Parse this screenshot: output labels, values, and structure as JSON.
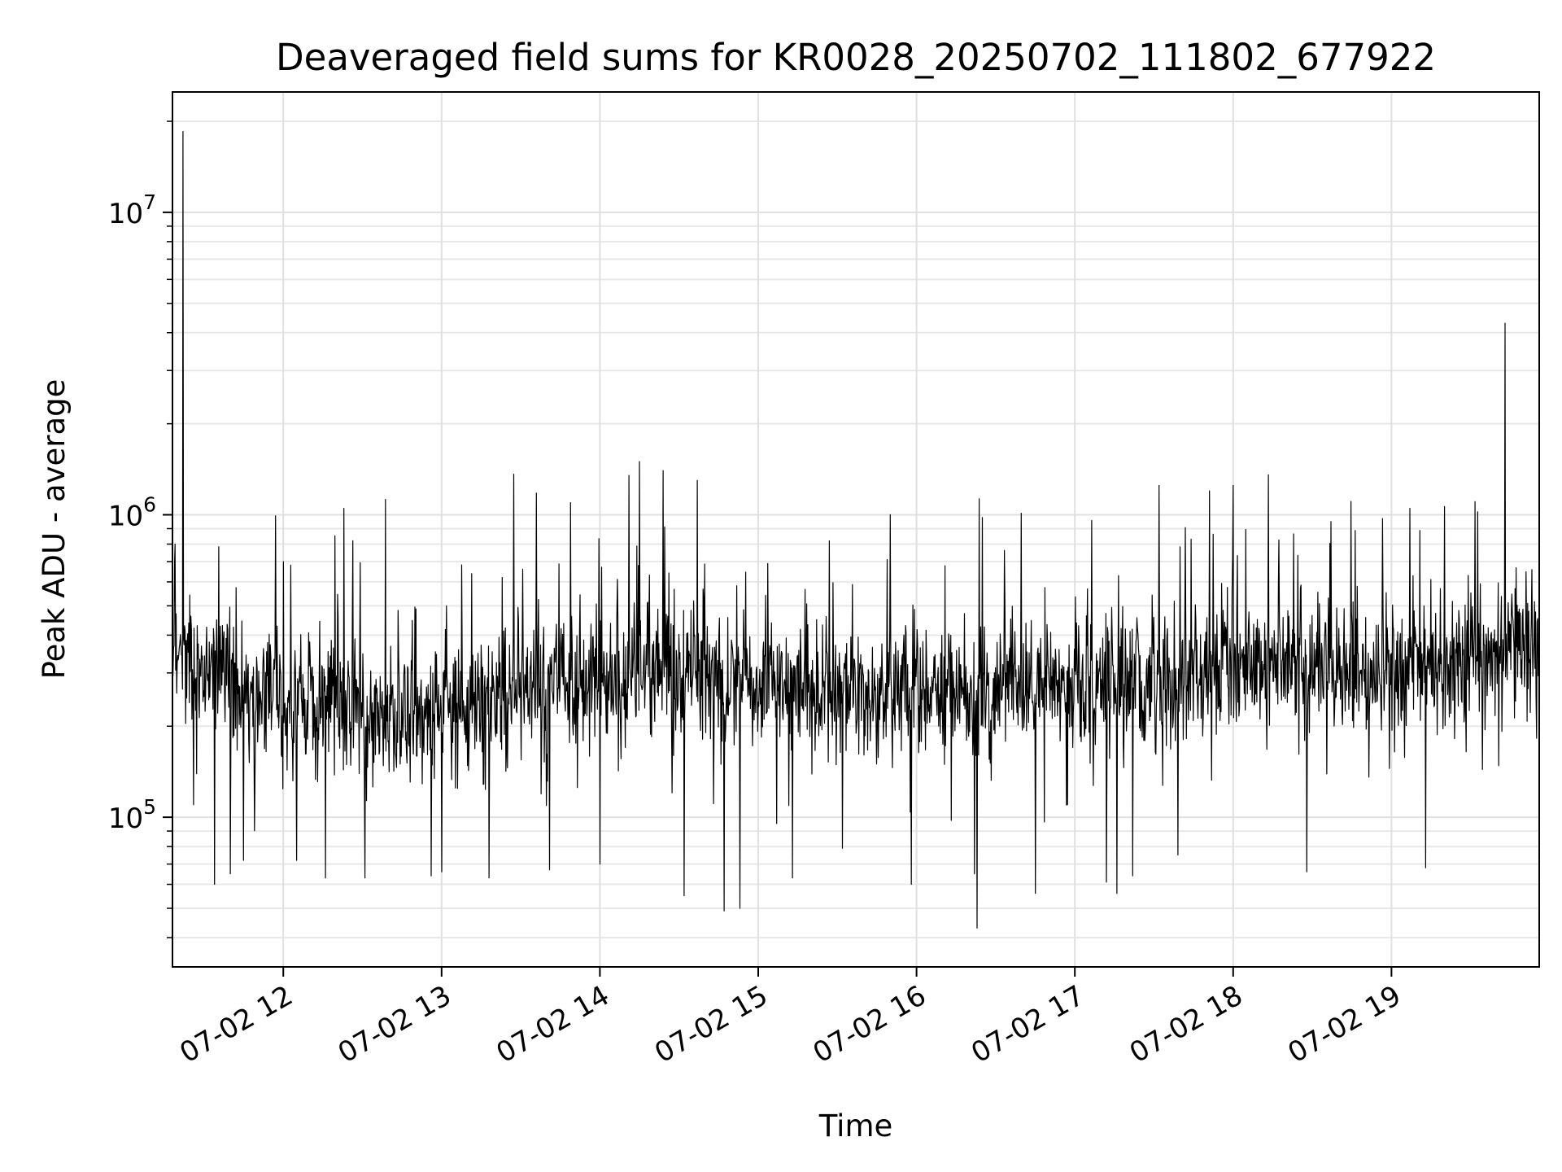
{
  "chart_data": {
    "type": "line",
    "title": "Deaveraged field sums for KR0028_20250702_111802_677922",
    "xlabel": "Time",
    "ylabel": "Peak ADU - average",
    "y_scale": "log",
    "xlim": [
      "2025-07-02 11:18",
      "2025-07-02 19:56"
    ],
    "ylim": [
      32000,
      25000000
    ],
    "grid": true,
    "line_color": "#000000",
    "x_ticks": [
      {
        "value": "2025-07-02 12:00",
        "label": "07-02 12"
      },
      {
        "value": "2025-07-02 13:00",
        "label": "07-02 13"
      },
      {
        "value": "2025-07-02 14:00",
        "label": "07-02 14"
      },
      {
        "value": "2025-07-02 15:00",
        "label": "07-02 15"
      },
      {
        "value": "2025-07-02 16:00",
        "label": "07-02 16"
      },
      {
        "value": "2025-07-02 17:00",
        "label": "07-02 17"
      },
      {
        "value": "2025-07-02 18:00",
        "label": "07-02 18"
      },
      {
        "value": "2025-07-02 19:00",
        "label": "07-02 19"
      }
    ],
    "y_ticks": [
      {
        "value": 100000,
        "base": "10",
        "exp": "5"
      },
      {
        "value": 1000000,
        "base": "10",
        "exp": "6"
      },
      {
        "value": 10000000,
        "base": "10",
        "exp": "7"
      }
    ],
    "series": [
      {
        "baseline": [
          [
            "2025-07-02 11:18",
            350000
          ],
          [
            "2025-07-02 11:30",
            300000
          ],
          [
            "2025-07-02 11:45",
            270000
          ],
          [
            "2025-07-02 12:00",
            250000
          ],
          [
            "2025-07-02 12:15",
            230000
          ],
          [
            "2025-07-02 12:30",
            215000
          ],
          [
            "2025-07-02 12:45",
            210000
          ],
          [
            "2025-07-02 13:00",
            220000
          ],
          [
            "2025-07-02 13:15",
            240000
          ],
          [
            "2025-07-02 13:30",
            260000
          ],
          [
            "2025-07-02 13:45",
            280000
          ],
          [
            "2025-07-02 14:00",
            290000
          ],
          [
            "2025-07-02 14:15",
            300000
          ],
          [
            "2025-07-02 14:30",
            300000
          ],
          [
            "2025-07-02 14:45",
            285000
          ],
          [
            "2025-07-02 15:00",
            270000
          ],
          [
            "2025-07-02 15:15",
            265000
          ],
          [
            "2025-07-02 15:30",
            265000
          ],
          [
            "2025-07-02 15:45",
            265000
          ],
          [
            "2025-07-02 16:00",
            265000
          ],
          [
            "2025-07-02 16:15",
            265000
          ],
          [
            "2025-07-02 16:30",
            270000
          ],
          [
            "2025-07-02 16:45",
            270000
          ],
          [
            "2025-07-02 17:00",
            275000
          ],
          [
            "2025-07-02 17:15",
            280000
          ],
          [
            "2025-07-02 17:30",
            290000
          ],
          [
            "2025-07-02 17:45",
            300000
          ],
          [
            "2025-07-02 18:00",
            305000
          ],
          [
            "2025-07-02 18:15",
            305000
          ],
          [
            "2025-07-02 18:30",
            300000
          ],
          [
            "2025-07-02 18:45",
            300000
          ],
          [
            "2025-07-02 19:00",
            305000
          ],
          [
            "2025-07-02 19:15",
            320000
          ],
          [
            "2025-07-02 19:30",
            350000
          ],
          [
            "2025-07-02 19:45",
            380000
          ],
          [
            "2025-07-02 19:56",
            400000
          ]
        ],
        "peaks": [
          [
            "2025-07-02 11:22",
            18500000
          ],
          [
            "2025-07-02 11:19",
            800000
          ],
          [
            "2025-07-02 12:00",
            700000
          ],
          [
            "2025-07-02 12:23",
            1050000
          ],
          [
            "2025-07-02 13:41",
            1350000
          ],
          [
            "2025-07-02 13:36",
            1180000
          ],
          [
            "2025-07-02 14:15",
            1500000
          ],
          [
            "2025-07-02 14:11",
            1350000
          ],
          [
            "2025-07-02 14:24",
            1400000
          ],
          [
            "2025-07-02 14:37",
            1300000
          ],
          [
            "2025-07-02 15:27",
            820000
          ],
          [
            "2025-07-02 16:25",
            980000
          ],
          [
            "2025-07-02 17:32",
            1250000
          ],
          [
            "2025-07-02 17:51",
            1200000
          ],
          [
            "2025-07-02 18:00",
            1250000
          ],
          [
            "2025-07-02 18:37",
            950000
          ],
          [
            "2025-07-02 19:07",
            1050000
          ],
          [
            "2025-07-02 19:43",
            4300000
          ]
        ],
        "troughs": [
          [
            "2025-07-02 11:26",
            110000
          ],
          [
            "2025-07-02 11:34",
            60000
          ],
          [
            "2025-07-02 11:40",
            65000
          ],
          [
            "2025-07-02 11:45",
            72000
          ],
          [
            "2025-07-02 12:05",
            72000
          ],
          [
            "2025-07-02 12:16",
            63000
          ],
          [
            "2025-07-02 12:31",
            63000
          ],
          [
            "2025-07-02 12:56",
            64000
          ],
          [
            "2025-07-02 13:00",
            66000
          ],
          [
            "2025-07-02 13:18",
            63000
          ],
          [
            "2025-07-02 13:41",
            67000
          ],
          [
            "2025-07-02 14:00",
            70000
          ],
          [
            "2025-07-02 14:32",
            55000
          ],
          [
            "2025-07-02 14:47",
            49000
          ],
          [
            "2025-07-02 14:53",
            50000
          ],
          [
            "2025-07-02 15:13",
            63000
          ],
          [
            "2025-07-02 15:32",
            79000
          ],
          [
            "2025-07-02 15:58",
            60000
          ],
          [
            "2025-07-02 16:22",
            65000
          ],
          [
            "2025-07-02 16:23",
            43000
          ],
          [
            "2025-07-02 16:45",
            56000
          ],
          [
            "2025-07-02 17:12",
            61000
          ],
          [
            "2025-07-02 17:16",
            56000
          ],
          [
            "2025-07-02 17:22",
            64000
          ],
          [
            "2025-07-02 17:39",
            75000
          ],
          [
            "2025-07-02 18:28",
            66000
          ],
          [
            "2025-07-02 19:13",
            68000
          ]
        ]
      }
    ]
  }
}
